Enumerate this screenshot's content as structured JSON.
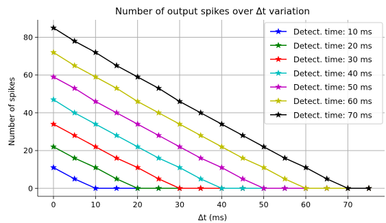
{
  "chart_data": {
    "type": "line",
    "title": "Number of output spikes over Δt variation",
    "xlabel": "Δt (ms)",
    "ylabel": "Number of spikes",
    "xlim": [
      -3.75,
      78.75
    ],
    "ylim": [
      -4.25,
      89.25
    ],
    "xticks": [
      0,
      10,
      20,
      30,
      40,
      50,
      60,
      70
    ],
    "yticks": [
      0,
      20,
      40,
      60,
      80
    ],
    "grid": true,
    "legend_position": "top-right",
    "marker": "star",
    "x": [
      0,
      5,
      10,
      15,
      20,
      25,
      30,
      35,
      40,
      45,
      50,
      55,
      60,
      65,
      70,
      75
    ],
    "series": [
      {
        "name": "Detect. time: 10 ms",
        "color": "#0000ff",
        "values": [
          11,
          5,
          0,
          0,
          0,
          0,
          0,
          0,
          0,
          0,
          0,
          0,
          0,
          0,
          0,
          0
        ]
      },
      {
        "name": "Detect. time: 20 ms",
        "color": "#008000",
        "values": [
          22,
          16,
          11,
          5,
          0,
          0,
          0,
          0,
          0,
          0,
          0,
          0,
          0,
          0,
          0,
          0
        ]
      },
      {
        "name": "Detect. time: 30 ms",
        "color": "#ff0000",
        "values": [
          34,
          28,
          22,
          16,
          11,
          5,
          0,
          0,
          0,
          0,
          0,
          0,
          0,
          0,
          0,
          0
        ]
      },
      {
        "name": "Detect. time: 40 ms",
        "color": "#00bfbf",
        "values": [
          47,
          40,
          34,
          28,
          22,
          16,
          11,
          5,
          0,
          0,
          0,
          0,
          0,
          0,
          0,
          0
        ]
      },
      {
        "name": "Detect. time: 50 ms",
        "color": "#bf00bf",
        "values": [
          59,
          53,
          46,
          40,
          34,
          28,
          22,
          16,
          11,
          5,
          0,
          0,
          0,
          0,
          0,
          0
        ]
      },
      {
        "name": "Detect. time: 60 ms",
        "color": "#bfbf00",
        "values": [
          72,
          65,
          59,
          53,
          46,
          40,
          34,
          28,
          22,
          16,
          11,
          5,
          0,
          0,
          0,
          0
        ]
      },
      {
        "name": "Detect. time: 70 ms",
        "color": "#000000",
        "values": [
          85,
          78,
          72,
          65,
          59,
          53,
          46,
          40,
          34,
          28,
          22,
          16,
          11,
          5,
          0,
          0
        ]
      }
    ]
  }
}
